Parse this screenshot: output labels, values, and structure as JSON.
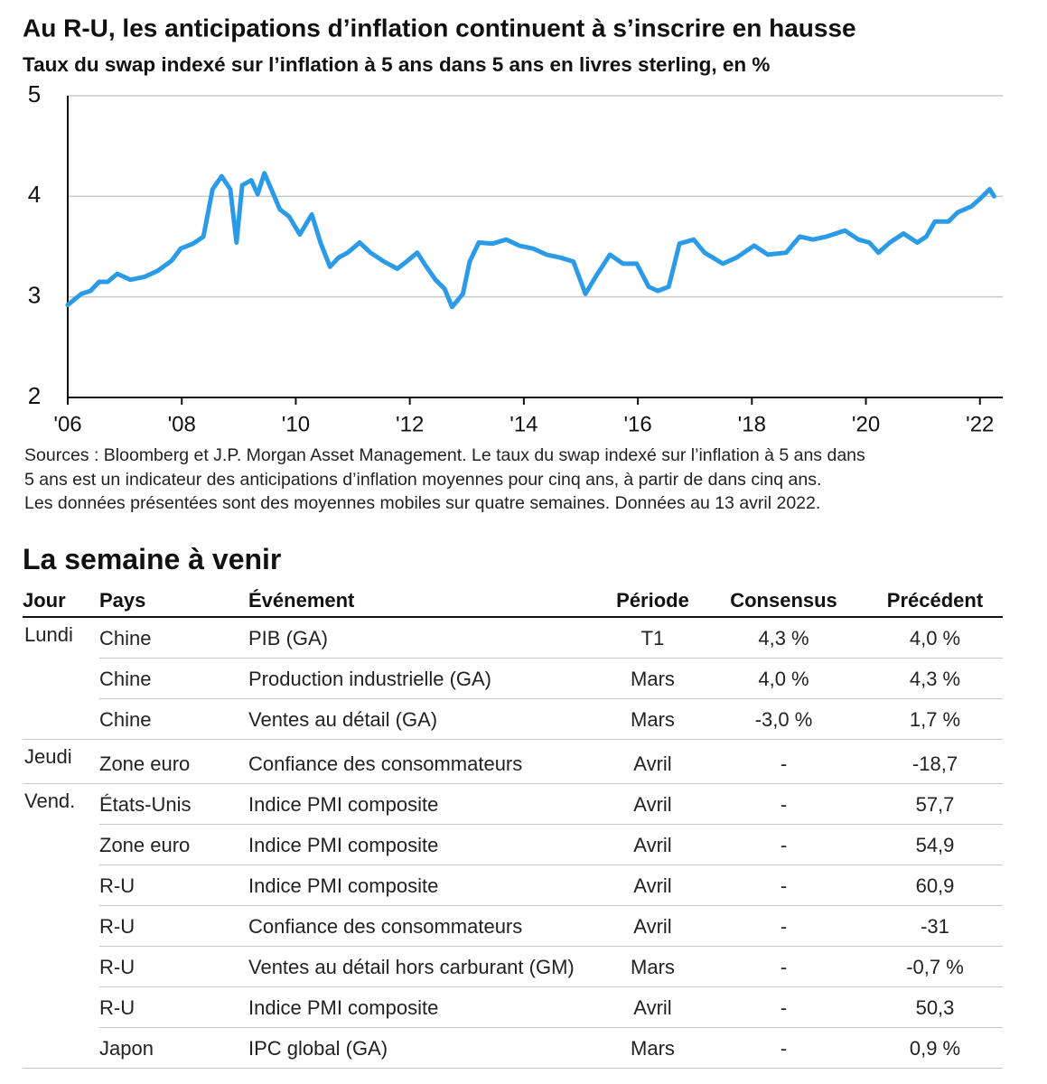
{
  "chart_data": {
    "type": "line",
    "title": "Au R-U, les anticipations d’inflation continuent à s’inscrire en hausse",
    "subtitle": "Taux du swap indexé sur l’inflation à 5 ans dans 5 ans en livres sterling, en %",
    "x": [
      2006.0,
      2006.24,
      2006.4,
      2006.55,
      2006.7,
      2006.87,
      2007.1,
      2007.35,
      2007.58,
      2007.82,
      2007.98,
      2008.2,
      2008.38,
      2008.54,
      2008.7,
      2008.85,
      2008.96,
      2009.06,
      2009.22,
      2009.33,
      2009.45,
      2009.57,
      2009.72,
      2009.88,
      2010.07,
      2010.28,
      2010.44,
      2010.6,
      2010.75,
      2010.91,
      2011.12,
      2011.31,
      2011.55,
      2011.78,
      2011.94,
      2012.13,
      2012.29,
      2012.45,
      2012.61,
      2012.74,
      2012.93,
      2013.05,
      2013.21,
      2013.45,
      2013.69,
      2013.92,
      2014.16,
      2014.4,
      2014.64,
      2014.87,
      2015.08,
      2015.27,
      2015.51,
      2015.74,
      2015.98,
      2016.19,
      2016.35,
      2016.54,
      2016.73,
      2016.98,
      2017.17,
      2017.49,
      2017.73,
      2018.04,
      2018.28,
      2018.6,
      2018.84,
      2019.07,
      2019.31,
      2019.63,
      2019.87,
      2020.06,
      2020.22,
      2020.42,
      2020.66,
      2020.9,
      2021.06,
      2021.21,
      2021.45,
      2021.61,
      2021.85,
      2022.01,
      2022.17,
      2022.25
    ],
    "values": [
      2.92,
      3.03,
      3.06,
      3.15,
      3.15,
      3.23,
      3.17,
      3.2,
      3.26,
      3.36,
      3.48,
      3.53,
      3.6,
      4.07,
      4.2,
      4.07,
      3.54,
      4.11,
      4.16,
      4.02,
      4.23,
      4.07,
      3.87,
      3.8,
      3.62,
      3.82,
      3.53,
      3.3,
      3.39,
      3.44,
      3.54,
      3.44,
      3.35,
      3.28,
      3.35,
      3.44,
      3.3,
      3.17,
      3.08,
      2.9,
      3.03,
      3.35,
      3.54,
      3.53,
      3.57,
      3.51,
      3.48,
      3.42,
      3.39,
      3.35,
      3.03,
      3.21,
      3.42,
      3.33,
      3.33,
      3.1,
      3.06,
      3.1,
      3.53,
      3.57,
      3.44,
      3.33,
      3.39,
      3.51,
      3.42,
      3.44,
      3.6,
      3.57,
      3.6,
      3.66,
      3.57,
      3.54,
      3.44,
      3.54,
      3.63,
      3.54,
      3.6,
      3.75,
      3.75,
      3.84,
      3.9,
      3.98,
      4.07,
      4.0
    ],
    "color": "#2b9be8",
    "xlim": [
      2006,
      2022.4
    ],
    "xticks": [
      {
        "value": 2006,
        "label": "'06"
      },
      {
        "value": 2008,
        "label": "'08"
      },
      {
        "value": 2010,
        "label": "'10"
      },
      {
        "value": 2012,
        "label": "'12"
      },
      {
        "value": 2014,
        "label": "'14"
      },
      {
        "value": 2016,
        "label": "'16"
      },
      {
        "value": 2018,
        "label": "'18"
      },
      {
        "value": 2020,
        "label": "'20"
      },
      {
        "value": 2022,
        "label": "'22"
      }
    ],
    "ylim": [
      2,
      5
    ],
    "yticks": [
      2,
      3,
      4,
      5
    ],
    "grid": true,
    "note": [
      "Sources : Bloomberg et J.P. Morgan Asset Management. Le taux du swap indexé sur l’inflation à 5 ans dans",
      "5 ans est un indicateur des anticipations d’inflation moyennes pour cinq ans, à partir de dans cinq ans.",
      "Les données présentées sont des moyennes mobiles sur quatre semaines. Données au 13 avril 2022."
    ]
  },
  "table": {
    "title": "La semaine à venir",
    "headers": [
      "Jour",
      "Pays",
      "Événement",
      "Période",
      "Consensus",
      "Précédent"
    ],
    "groups": [
      {
        "day": "Lundi",
        "rows": [
          [
            "Chine",
            "PIB (GA)",
            "T1",
            "4,3 %",
            "4,0 %"
          ],
          [
            "Chine",
            "Production industrielle (GA)",
            "Mars",
            "4,0 %",
            "4,3 %"
          ],
          [
            "Chine",
            "Ventes au détail (GA)",
            "Mars",
            "-3,0 %",
            "1,7 %"
          ]
        ]
      },
      {
        "day": "Jeudi",
        "rows": [
          [
            "Zone euro",
            "Confiance des consommateurs",
            "Avril",
            "-",
            "-18,7"
          ]
        ]
      },
      {
        "day": "Vend.",
        "rows": [
          [
            "États-Unis",
            "Indice PMI composite",
            "Avril",
            "-",
            "57,7"
          ],
          [
            "Zone euro",
            "Indice PMI composite",
            "Avril",
            "-",
            "54,9"
          ],
          [
            "R-U",
            "Indice PMI composite",
            "Avril",
            "-",
            "60,9"
          ],
          [
            "R-U",
            "Confiance des consommateurs",
            "Avril",
            "-",
            "-31"
          ],
          [
            "R-U",
            "Ventes au détail hors carburant (GM)",
            "Mars",
            "-",
            "-0,7 %"
          ],
          [
            "R-U",
            "Indice PMI composite",
            "Avril",
            "-",
            "50,3"
          ],
          [
            "Japon",
            "IPC global (GA)",
            "Mars",
            "-",
            "0,9 %"
          ]
        ]
      }
    ]
  }
}
